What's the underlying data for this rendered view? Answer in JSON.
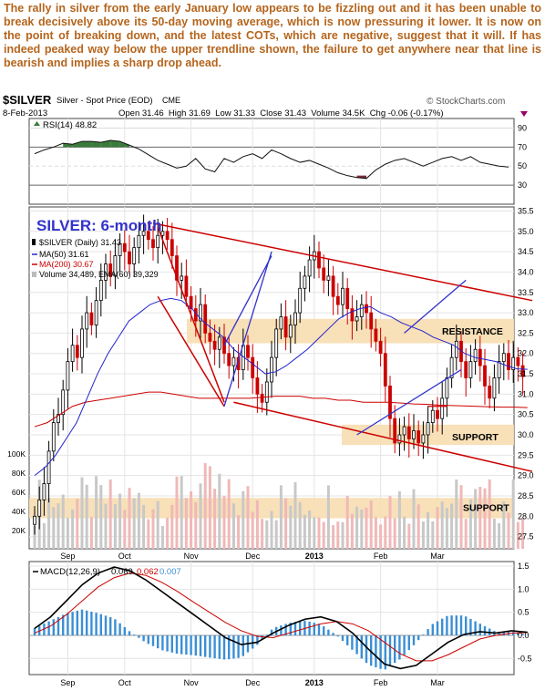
{
  "commentary": "The rally in silver from the early January low appears to be fizzling out and it has been unable to break decisively above its 50-day moving average, which is now pressuring it lower. It is now on the point of breaking down, and the latest COTs, which are negative, suggest that it will. If has indeed peaked way below the upper trendline shown, the failure to get anywhere near that line is bearish and implies a sharp drop ahead.",
  "header": {
    "symbol": "$SILVER",
    "name": "Silver - Spot Price (EOD)",
    "exchange": "CME",
    "watermark": "© StockCharts.com",
    "date": "8-Feb-2013",
    "ohlc": "Open 31.46  High 31.69  Low 31.33  Close 31.43  Volume 34.5K  Chg -0.06 (-0.17%)"
  },
  "colors": {
    "up": "#000000",
    "down": "#cc0000",
    "ma50": "#2222cc",
    "ma200": "#cc0000",
    "band": "#f7ddb0",
    "channel": "#cc0000",
    "uptrend": "#3333cc",
    "rsi_fill": "#3a7a3a",
    "macd_hist": "#3b8fd4",
    "vol_up": "#c8c8c8",
    "vol_down": "#f0b8b8",
    "label": "#3333cc"
  },
  "chart_data": [
    {
      "type": "line",
      "panel": "rsi",
      "legend": "RSI(14) 48.82",
      "ylim": [
        10,
        100
      ],
      "y_ticks": [
        90,
        70,
        50,
        30
      ],
      "levels": [
        70,
        30
      ],
      "x": [
        0,
        4,
        8,
        12,
        16,
        20,
        24,
        28,
        32,
        36,
        40,
        44,
        48,
        52,
        56,
        60,
        64,
        68,
        72,
        76,
        80,
        84,
        88,
        92,
        96,
        100,
        104,
        108,
        112,
        116,
        120,
        124,
        128,
        132,
        136,
        140,
        144,
        148,
        152,
        156,
        160,
        164,
        168,
        172,
        176,
        180,
        184,
        188,
        192,
        196,
        200
      ],
      "values": [
        63,
        67,
        70,
        74,
        73,
        76,
        76,
        75,
        77,
        76,
        72,
        68,
        62,
        56,
        52,
        48,
        50,
        58,
        47,
        44,
        58,
        54,
        60,
        63,
        58,
        67,
        63,
        58,
        54,
        56,
        52,
        48,
        43,
        40,
        38,
        37,
        46,
        52,
        56,
        58,
        54,
        50,
        54,
        58,
        60,
        56,
        60,
        54,
        52,
        50,
        49
      ]
    },
    {
      "type": "candlestick",
      "panel": "price",
      "title": "SILVER: 6-month",
      "legend": [
        "$SILVER (Daily) 31.43",
        "MA(50) 31.61",
        "MA(200) 30.67",
        "Volume 34,489, EMA(60) 39,329"
      ],
      "ylim": [
        27.2,
        35.6
      ],
      "y_ticks": [
        35.5,
        35.0,
        34.5,
        34.0,
        33.5,
        33.0,
        32.5,
        32.0,
        31.5,
        31.0,
        30.5,
        30.0,
        29.5,
        29.0,
        28.5,
        28.0,
        27.5
      ],
      "volume_ticks": [
        "100K",
        "80K",
        "60K",
        "40K",
        "20K"
      ],
      "x_tick_labels": [
        "Sep",
        "Oct",
        "Nov",
        "Dec",
        "2013",
        "Feb",
        "Mar"
      ],
      "x_tick_positions": [
        14,
        38,
        66,
        92,
        118,
        146,
        170
      ],
      "close": [
        28.0,
        28.4,
        28.8,
        29.6,
        30.3,
        30.5,
        31.1,
        31.8,
        32.2,
        31.9,
        32.6,
        33.0,
        32.7,
        33.3,
        33.8,
        34.2,
        33.9,
        34.4,
        34.7,
        34.5,
        34.2,
        34.6,
        34.9,
        35.0,
        34.8,
        34.6,
        34.9,
        35.0,
        34.8,
        34.4,
        33.8,
        33.9,
        33.4,
        33.1,
        32.8,
        33.2,
        32.5,
        32.3,
        32.1,
        32.4,
        32.0,
        31.7,
        31.9,
        31.6,
        32.2,
        31.9,
        31.4,
        31.0,
        30.8,
        31.3,
        31.9,
        32.6,
        32.9,
        32.4,
        32.7,
        33.0,
        33.6,
        33.9,
        34.3,
        34.5,
        34.1,
        33.8,
        33.9,
        33.4,
        33.2,
        33.6,
        33.1,
        32.8,
        32.9,
        33.2,
        33.0,
        32.6,
        32.3,
        32.0,
        31.2,
        30.4,
        29.8,
        30.0,
        30.2,
        29.9,
        30.1,
        29.8,
        30.0,
        30.3,
        30.6,
        30.4,
        30.9,
        31.4,
        31.9,
        32.3,
        31.8,
        31.4,
        31.8,
        32.1,
        31.7,
        31.2,
        30.9,
        31.4,
        31.8,
        32.0,
        31.6,
        31.9,
        31.7,
        31.43
      ],
      "ma50": [
        29.0,
        29.2,
        29.5,
        29.9,
        30.3,
        30.9,
        31.5,
        32.0,
        32.4,
        32.8,
        33.0,
        33.2,
        33.3,
        33.35,
        33.3,
        33.1,
        32.8,
        32.6,
        32.4,
        32.1,
        31.9,
        31.7,
        31.5,
        31.55,
        31.7,
        31.9,
        32.1,
        32.35,
        32.6,
        32.85,
        33.0,
        33.1,
        33.15,
        33.0,
        32.9,
        32.75,
        32.65,
        32.55,
        32.4,
        32.3,
        32.2,
        32.0,
        31.9,
        31.85,
        31.8,
        31.7,
        31.62,
        31.61
      ],
      "ma200": [
        30.2,
        30.3,
        30.5,
        30.7,
        30.8,
        30.85,
        30.9,
        30.95,
        31.0,
        31.05,
        31.05,
        31.0,
        30.95,
        30.9,
        30.9,
        30.9,
        30.9,
        30.9,
        30.92,
        30.95,
        30.95,
        30.95,
        30.9,
        30.9,
        30.85,
        30.85,
        30.8,
        30.8,
        30.8,
        30.78,
        30.76,
        30.75,
        30.73,
        30.72,
        30.71,
        30.7,
        30.69,
        30.68,
        30.68,
        30.67
      ],
      "annotations": [
        "RESISTANCE",
        "SUPPORT",
        "SUPPORT"
      ]
    },
    {
      "type": "line",
      "panel": "macd",
      "legend_label": "MACD(12,26,9)",
      "legend_values": [
        "0.069",
        "0.062",
        "0.007"
      ],
      "ylim": [
        -0.85,
        1.6
      ],
      "y_ticks": [
        1.5,
        1.0,
        0.5,
        0.0,
        -0.5
      ],
      "x_tick_labels": [
        "Sep",
        "Oct",
        "Nov",
        "Dec",
        "2013",
        "Feb",
        "Mar"
      ],
      "macd": [
        0.15,
        0.4,
        0.75,
        1.1,
        1.35,
        1.48,
        1.4,
        1.2,
        0.95,
        0.7,
        0.45,
        0.2,
        -0.05,
        -0.2,
        -0.15,
        0.05,
        0.22,
        0.35,
        0.4,
        0.3,
        0.05,
        -0.3,
        -0.62,
        -0.72,
        -0.65,
        -0.4,
        -0.15,
        0.02,
        0.08,
        0.05,
        0.1,
        0.069
      ],
      "signal": [
        0.05,
        0.2,
        0.45,
        0.75,
        1.05,
        1.25,
        1.35,
        1.3,
        1.15,
        0.95,
        0.72,
        0.5,
        0.28,
        0.1,
        -0.02,
        -0.05,
        0.05,
        0.15,
        0.25,
        0.3,
        0.25,
        0.1,
        -0.15,
        -0.4,
        -0.55,
        -0.55,
        -0.42,
        -0.25,
        -0.08,
        0.0,
        0.05,
        0.062
      ]
    }
  ]
}
